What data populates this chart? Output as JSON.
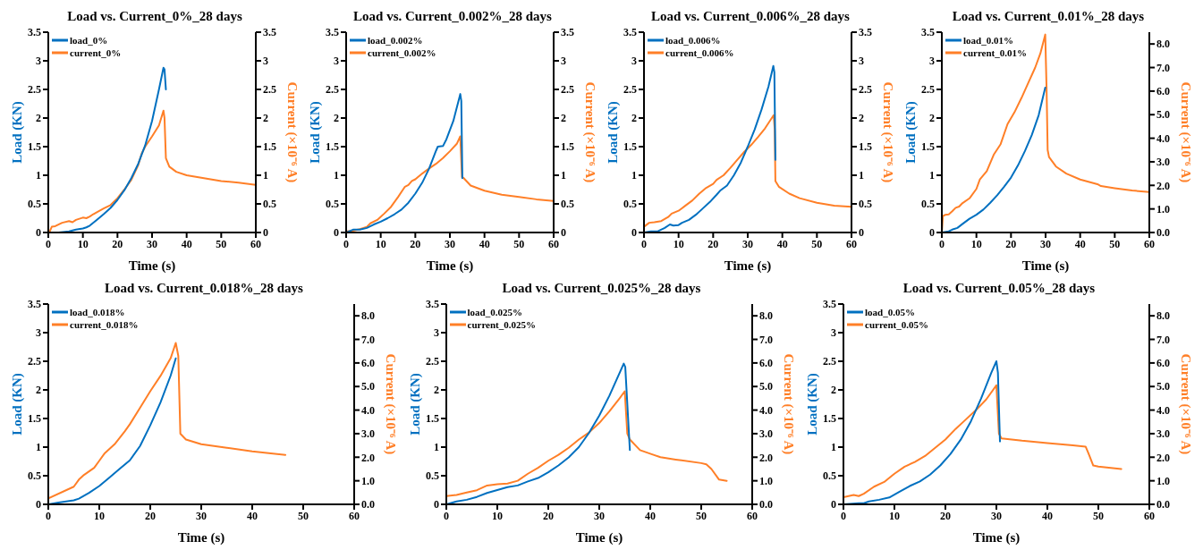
{
  "chart_data": [
    {
      "type": "line",
      "title": "Load vs. Current_0%_28 days",
      "xlabel": "Time (s)",
      "ylabel": "Load (KN)",
      "y2label": "Current (×10⁻⁶ A)",
      "xlim": [
        0,
        60
      ],
      "xticks": [
        0,
        10,
        20,
        30,
        40,
        50,
        60
      ],
      "ylim": [
        0,
        3.5
      ],
      "yticks": [
        0,
        0.5,
        1,
        1.5,
        2,
        2.5,
        3,
        3.5
      ],
      "y2lim": [
        0,
        3.5
      ],
      "y2ticks": [
        0,
        0.5,
        1,
        1.5,
        2,
        2.5,
        3,
        3.5
      ],
      "legend": "top left",
      "grid": false,
      "marker": "none",
      "line_style": "solid",
      "series": [
        {
          "name": "load_0%",
          "color": "#0070c0",
          "x": [
            0,
            3,
            6,
            8,
            10,
            11,
            12,
            14,
            16,
            18,
            20,
            22,
            24,
            26,
            28,
            30,
            32,
            33.3,
            33.6,
            34
          ],
          "values": [
            0,
            0,
            0.02,
            0.05,
            0.07,
            0.09,
            0.12,
            0.22,
            0.32,
            0.43,
            0.57,
            0.74,
            0.95,
            1.2,
            1.52,
            1.95,
            2.5,
            2.88,
            2.85,
            2.5
          ]
        },
        {
          "name": "current_0%",
          "color": "#ff7f27",
          "axis": "y2",
          "x": [
            0,
            0.3,
            1,
            2,
            4,
            6,
            7,
            8,
            10,
            11,
            12,
            13,
            16,
            18,
            20,
            22,
            24,
            26,
            27,
            28,
            30,
            32,
            33.3,
            33.6,
            34,
            35,
            37,
            40,
            45,
            50,
            55,
            60
          ],
          "values": [
            0,
            0,
            0.1,
            0.11,
            0.17,
            0.2,
            0.18,
            0.22,
            0.26,
            0.25,
            0.28,
            0.32,
            0.42,
            0.48,
            0.6,
            0.75,
            0.92,
            1.18,
            1.38,
            1.5,
            1.68,
            1.87,
            2.13,
            2.0,
            1.3,
            1.15,
            1.06,
            1.0,
            0.95,
            0.9,
            0.87,
            0.83
          ]
        }
      ]
    },
    {
      "type": "line",
      "title": "Load vs. Current_0.002%_28 days",
      "xlabel": "Time (s)",
      "ylabel": "Load (KN)",
      "y2label": "Current (×10⁻⁶ A)",
      "xlim": [
        0,
        60
      ],
      "xticks": [
        0,
        10,
        20,
        30,
        40,
        50,
        60
      ],
      "ylim": [
        0,
        3.5
      ],
      "yticks": [
        0,
        0.5,
        1,
        1.5,
        2,
        2.5,
        3,
        3.5
      ],
      "y2lim": [
        0,
        3.5
      ],
      "y2ticks": [
        0,
        0.5,
        1,
        1.5,
        2,
        2.5,
        3,
        3.5
      ],
      "legend": "top left",
      "grid": false,
      "marker": "none",
      "line_style": "solid",
      "series": [
        {
          "name": "load_0.002%",
          "color": "#0070c0",
          "x": [
            0,
            2,
            4,
            6,
            8,
            10,
            12,
            14,
            16,
            18,
            20,
            22,
            24,
            26,
            26.5,
            28,
            29,
            31,
            32.5,
            33,
            33.3,
            33.6
          ],
          "values": [
            0,
            0.05,
            0.05,
            0.08,
            0.14,
            0.19,
            0.25,
            0.32,
            0.4,
            0.52,
            0.68,
            0.87,
            1.12,
            1.43,
            1.5,
            1.51,
            1.63,
            1.95,
            2.3,
            2.42,
            2.3,
            0.95
          ]
        },
        {
          "name": "current_0.002%",
          "color": "#ff7f27",
          "axis": "y2",
          "x": [
            0,
            2,
            4,
            6,
            7,
            9,
            11,
            13,
            15,
            17,
            18,
            19,
            20,
            22,
            24,
            26,
            28,
            30,
            32,
            33,
            33.5,
            34,
            36,
            40,
            45,
            50,
            55,
            60
          ],
          "values": [
            0.02,
            0.03,
            0.06,
            0.1,
            0.16,
            0.22,
            0.33,
            0.45,
            0.62,
            0.8,
            0.83,
            0.9,
            0.93,
            1.03,
            1.12,
            1.2,
            1.3,
            1.42,
            1.55,
            1.68,
            0.97,
            0.95,
            0.82,
            0.73,
            0.66,
            0.62,
            0.58,
            0.55
          ]
        }
      ]
    },
    {
      "type": "line",
      "title": "Load vs. Current_0.006%_28 days",
      "xlabel": "Time (s)",
      "ylabel": "Load (KN)",
      "y2label": "Current (×10⁻⁶ A)",
      "xlim": [
        0,
        60
      ],
      "xticks": [
        0,
        10,
        20,
        30,
        40,
        50,
        60
      ],
      "ylim": [
        0,
        3.5
      ],
      "yticks": [
        0,
        0.5,
        1,
        1.5,
        2,
        2.5,
        3,
        3.5
      ],
      "y2lim": [
        0,
        3.5
      ],
      "y2ticks": [
        0,
        0.5,
        1,
        1.5,
        2,
        2.5,
        3,
        3.5
      ],
      "legend": "top left",
      "grid": false,
      "marker": "none",
      "line_style": "solid",
      "series": [
        {
          "name": "load_0.006%",
          "color": "#0070c0",
          "x": [
            0,
            2,
            4,
            6,
            7.5,
            8.5,
            10,
            11,
            13,
            15,
            17,
            19,
            21,
            22,
            24,
            26,
            28,
            30,
            32,
            34,
            36,
            37.4,
            37.7,
            38
          ],
          "values": [
            0,
            0.02,
            0.02,
            0.08,
            0.14,
            0.12,
            0.13,
            0.17,
            0.22,
            0.31,
            0.42,
            0.53,
            0.66,
            0.73,
            0.82,
            1.0,
            1.22,
            1.5,
            1.8,
            2.15,
            2.55,
            2.91,
            2.8,
            1.27
          ]
        },
        {
          "name": "current_0.006%",
          "color": "#ff7f27",
          "axis": "y2",
          "x": [
            0,
            1.5,
            3,
            5,
            7,
            8,
            10,
            12,
            14,
            16,
            18,
            20,
            21,
            23,
            25,
            27,
            29,
            31,
            33,
            35,
            37.5,
            37.8,
            38,
            39,
            42,
            45,
            50,
            55,
            60
          ],
          "values": [
            0.1,
            0.17,
            0.18,
            0.2,
            0.27,
            0.33,
            0.38,
            0.47,
            0.56,
            0.68,
            0.78,
            0.85,
            0.92,
            1.0,
            1.13,
            1.27,
            1.41,
            1.53,
            1.67,
            1.82,
            2.05,
            1.8,
            0.9,
            0.8,
            0.68,
            0.6,
            0.52,
            0.47,
            0.45
          ]
        }
      ]
    },
    {
      "type": "line",
      "title": "Load vs. Current_0.01%_28 days",
      "xlabel": "Time (s)",
      "ylabel": "Load (KN)",
      "y2label": "Current (×10⁻⁶ A)",
      "xlim": [
        0,
        60
      ],
      "xticks": [
        0,
        10,
        20,
        30,
        40,
        50,
        60
      ],
      "ylim": [
        0,
        3.5
      ],
      "yticks": [
        0,
        0.5,
        1,
        1.5,
        2,
        2.5,
        3,
        3.5
      ],
      "y2lim": [
        0,
        8.5
      ],
      "y2ticks": [
        {
          "value": 0,
          "label": "0.0"
        },
        {
          "value": 1,
          "label": "1.0"
        },
        {
          "value": 2,
          "label": "2.0"
        },
        {
          "value": 3,
          "label": "3.0"
        },
        {
          "value": 4,
          "label": "4.0"
        },
        {
          "value": 5,
          "label": "5.0"
        },
        {
          "value": 6,
          "label": "6.0"
        },
        {
          "value": 7,
          "label": "7.0"
        },
        {
          "value": 8,
          "label": "8.0"
        }
      ],
      "legend": "top left",
      "grid": false,
      "marker": "none",
      "line_style": "solid",
      "series": [
        {
          "name": "load_0.01%",
          "color": "#0070c0",
          "x": [
            0,
            2,
            3,
            4.5,
            6,
            8,
            10,
            12,
            14,
            16,
            18,
            20,
            22,
            24,
            26,
            28,
            29.9
          ],
          "values": [
            0,
            0.02,
            0.05,
            0.08,
            0.15,
            0.24,
            0.31,
            0.4,
            0.52,
            0.65,
            0.8,
            0.96,
            1.17,
            1.42,
            1.7,
            2.05,
            2.53
          ]
        },
        {
          "name": "current_0.01%",
          "color": "#ff7f27",
          "axis": "y2",
          "x": [
            0,
            0.3,
            1,
            2,
            3,
            4,
            5,
            6,
            8,
            10,
            11,
            13,
            15,
            17,
            19,
            21,
            23,
            25,
            27,
            28.5,
            29.9,
            30.3,
            30.6,
            31,
            33,
            36,
            40,
            45,
            46,
            50,
            55,
            60
          ],
          "values": [
            0,
            0.7,
            0.75,
            0.77,
            0.9,
            1.05,
            1.1,
            1.25,
            1.45,
            1.85,
            2.25,
            2.6,
            3.3,
            3.75,
            4.6,
            5.1,
            5.7,
            6.35,
            7.0,
            7.6,
            8.4,
            6.0,
            3.5,
            3.2,
            2.8,
            2.5,
            2.25,
            2.05,
            1.97,
            1.88,
            1.78,
            1.72
          ]
        }
      ]
    },
    {
      "type": "line",
      "title": "Load vs. Current_0.018%_28 days",
      "xlabel": "Time (s)",
      "ylabel": "Load (KN)",
      "y2label": "Current (×10⁻⁶ A)",
      "xlim": [
        0,
        60
      ],
      "xticks": [
        0,
        10,
        20,
        30,
        40,
        50,
        60
      ],
      "ylim": [
        0,
        3.5
      ],
      "yticks": [
        0,
        0.5,
        1,
        1.5,
        2,
        2.5,
        3,
        3.5
      ],
      "y2lim": [
        0,
        8.5
      ],
      "y2ticks": [
        {
          "value": 0,
          "label": "0.0"
        },
        {
          "value": 1,
          "label": "1.0"
        },
        {
          "value": 2,
          "label": "2.0"
        },
        {
          "value": 3,
          "label": "3.0"
        },
        {
          "value": 4,
          "label": "4.0"
        },
        {
          "value": 5,
          "label": "5.0"
        },
        {
          "value": 6,
          "label": "6.0"
        },
        {
          "value": 7,
          "label": "7.0"
        },
        {
          "value": 8,
          "label": "8.0"
        }
      ],
      "legend": "top left",
      "grid": false,
      "marker": "none",
      "line_style": "solid",
      "series": [
        {
          "name": "load_0.018%",
          "color": "#0070c0",
          "x": [
            0,
            2,
            5,
            6,
            8,
            10,
            12,
            14,
            16,
            18,
            20,
            22,
            24,
            25
          ],
          "values": [
            0,
            0.03,
            0.07,
            0.1,
            0.2,
            0.32,
            0.47,
            0.62,
            0.77,
            1.02,
            1.38,
            1.78,
            2.25,
            2.55
          ]
        },
        {
          "name": "current_0.018%",
          "color": "#ff7f27",
          "axis": "y2",
          "x": [
            0,
            5,
            6,
            7,
            8,
            9,
            10,
            11,
            13,
            15,
            16,
            18,
            20,
            22,
            24,
            25,
            25.5,
            25.9,
            27,
            30,
            35,
            40,
            46.5
          ],
          "values": [
            0.25,
            0.75,
            1.05,
            1.25,
            1.4,
            1.55,
            1.85,
            2.15,
            2.55,
            3.1,
            3.4,
            4.1,
            4.8,
            5.45,
            6.2,
            6.85,
            6.3,
            3.0,
            2.75,
            2.55,
            2.4,
            2.25,
            2.1
          ]
        }
      ]
    },
    {
      "type": "line",
      "title": "Load vs. Current_0.025%_28 days",
      "xlabel": "Time (s)",
      "ylabel": "Load (KN)",
      "y2label": "Current (×10⁻⁶ A)",
      "xlim": [
        0,
        60
      ],
      "xticks": [
        0,
        10,
        20,
        30,
        40,
        50,
        60
      ],
      "ylim": [
        0,
        3.5
      ],
      "yticks": [
        0,
        0.5,
        1,
        1.5,
        2,
        2.5,
        3,
        3.5
      ],
      "y2lim": [
        0,
        8.5
      ],
      "y2ticks": [
        {
          "value": 0,
          "label": "0.0"
        },
        {
          "value": 1,
          "label": "1.0"
        },
        {
          "value": 2,
          "label": "2.0"
        },
        {
          "value": 3,
          "label": "3.0"
        },
        {
          "value": 4,
          "label": "4.0"
        },
        {
          "value": 5,
          "label": "5.0"
        },
        {
          "value": 6,
          "label": "6.0"
        },
        {
          "value": 7,
          "label": "7.0"
        },
        {
          "value": 8,
          "label": "8.0"
        }
      ],
      "legend": "top left",
      "grid": false,
      "marker": "none",
      "line_style": "solid",
      "series": [
        {
          "name": "load_0.025%",
          "color": "#0070c0",
          "x": [
            0,
            2,
            4,
            6,
            8,
            10,
            12,
            14,
            16,
            18,
            20,
            22,
            24,
            26,
            28,
            30,
            32,
            34,
            34.8,
            35.1,
            36
          ],
          "values": [
            0,
            0.05,
            0.08,
            0.13,
            0.2,
            0.25,
            0.3,
            0.33,
            0.4,
            0.46,
            0.56,
            0.68,
            0.82,
            1.0,
            1.25,
            1.55,
            1.9,
            2.3,
            2.46,
            2.4,
            0.95
          ]
        },
        {
          "name": "current_0.025%",
          "color": "#ff7f27",
          "axis": "y2",
          "x": [
            0,
            2,
            4,
            6,
            8,
            10,
            12,
            14,
            16,
            18,
            20,
            22,
            24,
            26,
            28,
            30,
            32,
            34,
            35,
            35.5,
            36,
            38,
            40,
            42,
            45,
            50,
            51,
            52,
            53.5,
            55
          ],
          "values": [
            0.35,
            0.4,
            0.5,
            0.6,
            0.8,
            0.85,
            0.88,
            1.0,
            1.3,
            1.55,
            1.85,
            2.1,
            2.4,
            2.75,
            3.05,
            3.45,
            3.95,
            4.5,
            4.8,
            3.0,
            2.75,
            2.3,
            2.15,
            2.0,
            1.9,
            1.75,
            1.7,
            1.5,
            1.05,
            1.0
          ]
        }
      ]
    },
    {
      "type": "line",
      "title": "Load vs. Current_0.05%_28 days",
      "xlabel": "Time (s)",
      "ylabel": "Load (KN)",
      "y2label": "Current (×10⁻⁶ A)",
      "xlim": [
        0,
        60
      ],
      "xticks": [
        0,
        10,
        20,
        30,
        40,
        50,
        60
      ],
      "ylim": [
        0,
        3.5
      ],
      "yticks": [
        0,
        0.5,
        1,
        1.5,
        2,
        2.5,
        3,
        3.5
      ],
      "y2lim": [
        0,
        8.5
      ],
      "y2ticks": [
        {
          "value": 0,
          "label": "0.0"
        },
        {
          "value": 1,
          "label": "1.0"
        },
        {
          "value": 2,
          "label": "2.0"
        },
        {
          "value": 3,
          "label": "3.0"
        },
        {
          "value": 4,
          "label": "4.0"
        },
        {
          "value": 5,
          "label": "5.0"
        },
        {
          "value": 6,
          "label": "6.0"
        },
        {
          "value": 7,
          "label": "7.0"
        },
        {
          "value": 8,
          "label": "8.0"
        }
      ],
      "legend": "top left",
      "grid": false,
      "marker": "none",
      "line_style": "solid",
      "series": [
        {
          "name": "load_0.05%",
          "color": "#0070c0",
          "x": [
            0,
            3,
            4,
            5,
            7,
            9,
            11,
            13,
            15,
            17,
            19,
            21,
            23,
            25,
            27,
            29,
            30,
            30.3,
            30.7
          ],
          "values": [
            0,
            0.02,
            0.02,
            0.05,
            0.08,
            0.12,
            0.22,
            0.32,
            0.4,
            0.52,
            0.68,
            0.88,
            1.13,
            1.45,
            1.85,
            2.3,
            2.5,
            2.3,
            1.1
          ]
        },
        {
          "name": "current_0.05%",
          "color": "#ff7f27",
          "axis": "y2",
          "x": [
            0,
            2,
            3,
            4,
            6,
            8,
            10,
            12,
            14,
            16,
            18,
            20,
            22,
            24,
            26,
            28,
            30,
            30.5,
            31,
            35,
            40,
            45,
            47.5,
            48,
            49,
            50,
            54.5
          ],
          "values": [
            0.3,
            0.4,
            0.35,
            0.45,
            0.75,
            0.95,
            1.3,
            1.6,
            1.8,
            2.05,
            2.4,
            2.75,
            3.2,
            3.6,
            4.0,
            4.45,
            5.05,
            3.0,
            2.8,
            2.7,
            2.6,
            2.5,
            2.45,
            2.2,
            1.65,
            1.6,
            1.5
          ]
        }
      ]
    }
  ]
}
